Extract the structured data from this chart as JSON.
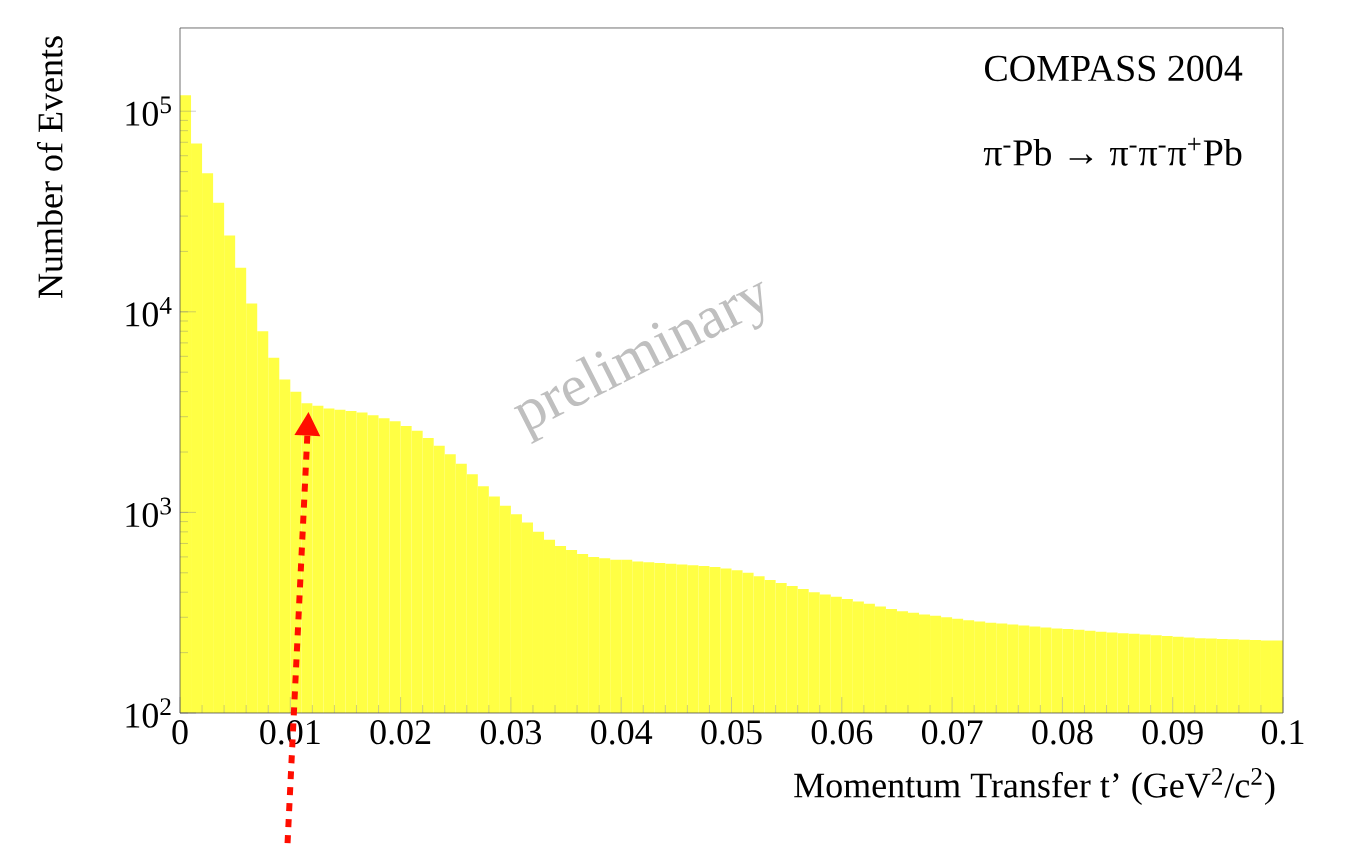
{
  "chart_data": {
    "type": "histogram",
    "xlabel": "Momentum Transfer t’ (GeV$^{2}$/c$^{2}$)",
    "ylabel": "Number of Events",
    "annotations": [
      "COMPASS 2004",
      "π$^{-}$Pb → π$^{-}$π$^{-}$π$^{+}$Pb",
      "preliminary"
    ],
    "color": "#ffff44",
    "log": "y",
    "bins": [
      0,
      0.001,
      0.002,
      0.003,
      0.004,
      0.005,
      0.006,
      0.007,
      0.008,
      0.009,
      0.01,
      0.011,
      0.012,
      0.013,
      0.014,
      0.015,
      0.016,
      0.017,
      0.018,
      0.019,
      0.02,
      0.021,
      0.022,
      0.023,
      0.024,
      0.025,
      0.026,
      0.027,
      0.028,
      0.029,
      0.03,
      0.031,
      0.032,
      0.033,
      0.034,
      0.035,
      0.036,
      0.037,
      0.038,
      0.039,
      0.04,
      0.041,
      0.042,
      0.043,
      0.044,
      0.045,
      0.046,
      0.047,
      0.048,
      0.049,
      0.05,
      0.051,
      0.052,
      0.053,
      0.054,
      0.055,
      0.056,
      0.057,
      0.058,
      0.059,
      0.06,
      0.061,
      0.062,
      0.063,
      0.064,
      0.065,
      0.066,
      0.067,
      0.068,
      0.069,
      0.07,
      0.071,
      0.072,
      0.073,
      0.074,
      0.075,
      0.076,
      0.077,
      0.078,
      0.079,
      0.08,
      0.081,
      0.082,
      0.083,
      0.084,
      0.085,
      0.086,
      0.087,
      0.088,
      0.089,
      0.09,
      0.091,
      0.092,
      0.093,
      0.094,
      0.095,
      0.096,
      0.097,
      0.098,
      0.099,
      0.1
    ],
    "values": [
      120000,
      69000,
      49000,
      35000,
      24000,
      16600,
      11000,
      8000,
      5900,
      4600,
      4000,
      3500,
      3400,
      3300,
      3250,
      3200,
      3150,
      3050,
      2950,
      2850,
      2700,
      2550,
      2350,
      2150,
      1950,
      1750,
      1550,
      1350,
      1200,
      1080,
      980,
      890,
      800,
      730,
      680,
      650,
      620,
      600,
      590,
      580,
      580,
      570,
      565,
      560,
      555,
      550,
      545,
      540,
      535,
      525,
      515,
      500,
      480,
      460,
      445,
      430,
      415,
      400,
      390,
      380,
      370,
      360,
      350,
      340,
      330,
      322,
      316,
      310,
      305,
      300,
      295,
      290,
      286,
      282,
      279,
      276,
      273,
      270,
      267,
      264,
      262,
      260,
      257,
      254,
      252,
      250,
      248,
      246,
      244,
      242,
      240,
      238,
      236,
      235,
      234,
      233,
      232,
      231,
      230,
      230
    ],
    "xlim": [
      0,
      0.1
    ],
    "ylim": [
      100,
      260000
    ],
    "xticks": [
      {
        "value": 0,
        "label": "0"
      },
      0.01,
      0.02,
      0.03,
      0.04,
      0.05,
      0.06,
      0.07,
      0.08,
      0.09,
      0.1
    ],
    "yticks": [
      {
        "value": 100,
        "label": "10$^{2}$"
      },
      {
        "value": 1000,
        "label": "10$^{3}$"
      },
      {
        "value": 10000,
        "label": "10$^{4}$"
      },
      {
        "value": 100000,
        "label": "10$^{5}$"
      }
    ]
  }
}
